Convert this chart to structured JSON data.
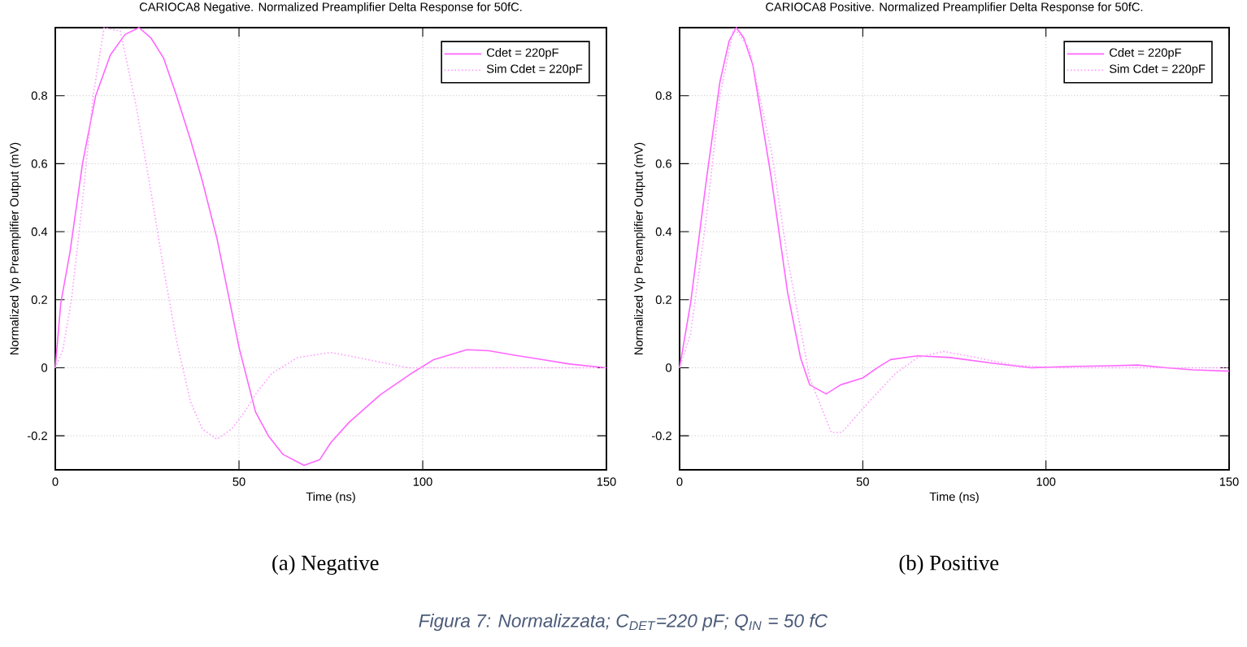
{
  "chart_data": [
    {
      "type": "line",
      "title": "CARIOCA8 Negative. Normalized Preamplifier Delta Response for 50fC.",
      "subtitle": "(a) Negative",
      "xlabel": "Time (ns)",
      "ylabel": "Normalized Vp Preamplifier Output (mV)",
      "xlim": [
        0,
        150
      ],
      "ylim": [
        -0.3,
        1.0
      ],
      "xticks": [
        0,
        50,
        100,
        150
      ],
      "yticks": [
        -0.2,
        0,
        0.2,
        0.4,
        0.6,
        0.8
      ],
      "grid": true,
      "legend": "top right",
      "annotations": [
        "Figura 7: Normalizzata;  C$_{DET}$=220 pF; Q$_{IN}$ = 50 fC"
      ],
      "series": [
        {
          "name": "Cdet = 220pF",
          "color": "#ff66ff",
          "line_style": "solid",
          "x": [
            0,
            1.5,
            4,
            7.4,
            11,
            15,
            19,
            22.8,
            26,
            29.5,
            33,
            36.8,
            40,
            44,
            47,
            50,
            54.5,
            58,
            62,
            67.7,
            72,
            75,
            80,
            88.4,
            97,
            103,
            112,
            118,
            125,
            132,
            140,
            150
          ],
          "values": [
            0,
            0.19,
            0.34,
            0.6,
            0.8,
            0.92,
            0.98,
            1.0,
            0.97,
            0.91,
            0.8,
            0.67,
            0.55,
            0.38,
            0.22,
            0.06,
            -0.13,
            -0.2,
            -0.255,
            -0.287,
            -0.27,
            -0.22,
            -0.16,
            -0.08,
            -0.016,
            0.024,
            0.053,
            0.05,
            0.037,
            0.025,
            0.011,
            0
          ]
        },
        {
          "name": "Sim Cdet = 220pF",
          "color": "#ff9cff",
          "line_style": "dotted",
          "x": [
            0,
            2,
            4.4,
            7.4,
            10.3,
            13.3,
            17.7,
            22,
            26,
            29.5,
            33,
            36.8,
            40,
            44,
            48,
            51.5,
            55,
            59,
            66,
            75,
            85,
            96,
            110,
            150
          ],
          "values": [
            0,
            0.05,
            0.2,
            0.49,
            0.8,
            1.0,
            0.99,
            0.77,
            0.52,
            0.29,
            0.08,
            -0.1,
            -0.18,
            -0.21,
            -0.18,
            -0.13,
            -0.07,
            -0.016,
            0.03,
            0.045,
            0.024,
            0,
            0,
            0
          ]
        }
      ]
    },
    {
      "type": "line",
      "title": "CARIOCA8 Positive. Normalized Preamplifier Delta Response for 50fC.",
      "subtitle": "(b) Positive",
      "xlabel": "Time (ns)",
      "ylabel": "Normalized Vp Preamplifier Output (mV)",
      "xlim": [
        0,
        150
      ],
      "ylim": [
        -0.3,
        1.0
      ],
      "xticks": [
        0,
        50,
        100,
        150
      ],
      "yticks": [
        -0.2,
        0,
        0.2,
        0.4,
        0.6,
        0.8
      ],
      "grid": true,
      "legend": "top right",
      "series": [
        {
          "name": "Cdet = 220pF",
          "color": "#ff66ff",
          "line_style": "solid",
          "x": [
            0,
            3,
            7.4,
            11,
            13.5,
            15.5,
            17.5,
            20,
            25,
            29.5,
            33,
            35.5,
            40,
            44,
            50,
            54,
            57.6,
            65,
            73.9,
            85.7,
            96,
            108,
            118,
            125,
            133,
            140,
            150
          ],
          "values": [
            0,
            0.19,
            0.56,
            0.84,
            0.96,
            1.0,
            0.97,
            0.89,
            0.56,
            0.22,
            0.03,
            -0.05,
            -0.077,
            -0.05,
            -0.03,
            0.0,
            0.024,
            0.035,
            0.03,
            0.013,
            0,
            0.004,
            0.006,
            0.008,
            0,
            -0.006,
            -0.01
          ]
        },
        {
          "name": "Sim Cdet = 220pF",
          "color": "#ff9cff",
          "line_style": "dotted",
          "x": [
            0,
            3,
            7.4,
            11,
            14.8,
            19,
            25,
            29.5,
            35.5,
            41.4,
            44.3,
            51.7,
            59,
            65,
            72,
            81,
            91,
            103,
            150
          ],
          "values": [
            0,
            0.1,
            0.45,
            0.8,
            1.0,
            0.94,
            0.64,
            0.32,
            -0.03,
            -0.19,
            -0.19,
            -0.1,
            -0.016,
            0.03,
            0.048,
            0.03,
            0.008,
            0,
            0
          ]
        }
      ]
    }
  ]
}
